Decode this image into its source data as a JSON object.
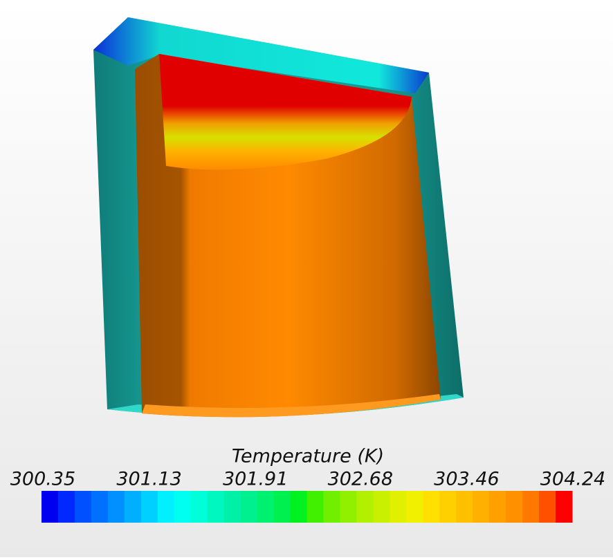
{
  "colorbar": {
    "title": "Temperature (K)",
    "ticks": [
      300.35,
      301.13,
      301.91,
      302.68,
      303.46,
      304.24
    ],
    "colormap": [
      "#0000f0",
      "#0028ff",
      "#0050ff",
      "#0070ff",
      "#0090ff",
      "#00b0ff",
      "#00d0ff",
      "#00f0ff",
      "#00fff0",
      "#00ffd8",
      "#00f8c0",
      "#00f0a8",
      "#00f090",
      "#00f070",
      "#00f050",
      "#00f020",
      "#40f000",
      "#70f000",
      "#90f000",
      "#b0f000",
      "#c8f000",
      "#e0f000",
      "#f0f000",
      "#ffe000",
      "#ffd000",
      "#ffc000",
      "#ffb000",
      "#ffa000",
      "#ff9000",
      "#ff7800",
      "#ff5000",
      "#ff0000"
    ]
  }
}
